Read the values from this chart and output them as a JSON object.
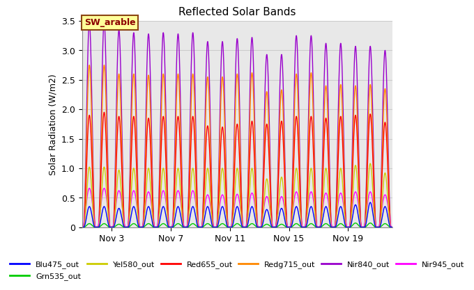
{
  "title": "Reflected Solar Bands",
  "ylabel": "Solar Radiation (W/m2)",
  "xlabel": "",
  "ylim": [
    0,
    3.5
  ],
  "annotation_text": "SW_arable",
  "annotation_color": "#8B0000",
  "annotation_bg": "#FFFF99",
  "series": [
    {
      "label": "Blu475_out",
      "color": "#0000FF"
    },
    {
      "label": "Grn535_out",
      "color": "#00CC00"
    },
    {
      "label": "Yel580_out",
      "color": "#CCCC00"
    },
    {
      "label": "Red655_out",
      "color": "#FF0000"
    },
    {
      "label": "Redg715_out",
      "color": "#FF8800"
    },
    {
      "label": "Nir840_out",
      "color": "#9900CC"
    },
    {
      "label": "Nir945_out",
      "color": "#FF00FF"
    }
  ],
  "xtick_labels": [
    "Nov 3",
    "Nov 7",
    "Nov 11",
    "Nov 15",
    "Nov 19"
  ],
  "xtick_positions": [
    2,
    6,
    10,
    14,
    18
  ],
  "grid_color": "#CCCCCC",
  "bg_color": "#E8E8E8",
  "n_days": 21,
  "day_peaks_nir840": [
    3.48,
    3.48,
    3.35,
    3.3,
    3.28,
    3.3,
    3.28,
    3.3,
    3.15,
    3.15,
    3.2,
    3.22,
    2.93,
    2.93,
    3.25,
    3.25,
    3.12,
    3.12,
    3.07,
    3.07,
    3.0
  ],
  "day_peaks_redg715": [
    2.75,
    2.75,
    2.6,
    2.6,
    2.58,
    2.6,
    2.6,
    2.6,
    2.55,
    2.55,
    2.6,
    2.62,
    2.3,
    2.33,
    2.6,
    2.62,
    2.4,
    2.42,
    2.4,
    2.42,
    2.35
  ],
  "day_peaks_red655": [
    1.9,
    1.95,
    1.88,
    1.88,
    1.85,
    1.88,
    1.88,
    1.88,
    1.72,
    1.7,
    1.75,
    1.8,
    1.75,
    1.8,
    1.88,
    1.88,
    1.85,
    1.88,
    1.9,
    1.92,
    1.78
  ],
  "day_peaks_nir945": [
    0.66,
    0.66,
    0.62,
    0.62,
    0.6,
    0.62,
    0.62,
    0.62,
    0.55,
    0.55,
    0.56,
    0.58,
    0.52,
    0.52,
    0.6,
    0.6,
    0.58,
    0.58,
    0.6,
    0.6,
    0.55
  ],
  "day_peaks_yel580": [
    1.02,
    1.02,
    0.97,
    1.0,
    1.0,
    1.0,
    1.0,
    1.0,
    1.0,
    1.0,
    1.0,
    1.0,
    0.82,
    0.85,
    1.0,
    1.0,
    1.0,
    1.0,
    1.05,
    1.08,
    0.92
  ],
  "day_peaks_blu475": [
    0.35,
    0.35,
    0.32,
    0.35,
    0.35,
    0.35,
    0.35,
    0.35,
    0.35,
    0.35,
    0.35,
    0.35,
    0.3,
    0.32,
    0.35,
    0.35,
    0.35,
    0.35,
    0.38,
    0.42,
    0.35
  ],
  "day_peaks_grn535": [
    0.06,
    0.06,
    0.05,
    0.06,
    0.06,
    0.06,
    0.06,
    0.06,
    0.06,
    0.06,
    0.06,
    0.06,
    0.05,
    0.05,
    0.06,
    0.06,
    0.06,
    0.06,
    0.07,
    0.07,
    0.06
  ]
}
